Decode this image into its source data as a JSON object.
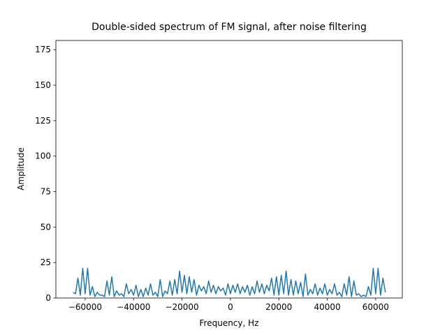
{
  "chart_data": {
    "type": "line",
    "title": "Double-sided spectrum of FM signal, after noise filtering",
    "xlabel": "Frequency, Hz",
    "ylabel": "Amplitude",
    "color": "#1f77b4",
    "grid": false,
    "x": [
      -65000,
      -64000,
      -63000,
      -62000,
      -61000,
      -60000,
      -59000,
      -58000,
      -57000,
      -56000,
      -55000,
      -54000,
      -53000,
      -52000,
      -51000,
      -50000,
      -49000,
      -48000,
      -47000,
      -46000,
      -45000,
      -44000,
      -43000,
      -42000,
      -41000,
      -40000,
      -39000,
      -38000,
      -37000,
      -36000,
      -35000,
      -34000,
      -33000,
      -32000,
      -31000,
      -30000,
      -29000,
      -28000,
      -27000,
      -26000,
      -25000,
      -24000,
      -23000,
      -22000,
      -21000,
      -20000,
      -19000,
      -18000,
      -17000,
      -16000,
      -15000,
      -14000,
      -13000,
      -12000,
      -11000,
      -10000,
      -9000,
      -8000,
      -7000,
      -6000,
      -5000,
      -4000,
      -3000,
      -2000,
      -1000,
      0,
      1000,
      2000,
      3000,
      4000,
      5000,
      6000,
      7000,
      8000,
      9000,
      10000,
      11000,
      12000,
      13000,
      14000,
      15000,
      16000,
      17000,
      18000,
      19000,
      20000,
      21000,
      22000,
      23000,
      24000,
      25000,
      26000,
      27000,
      28000,
      29000,
      30000,
      31000,
      32000,
      33000,
      34000,
      35000,
      36000,
      37000,
      38000,
      39000,
      40000,
      41000,
      42000,
      43000,
      44000,
      45000,
      46000,
      47000,
      48000,
      49000,
      50000,
      51000,
      52000,
      53000,
      54000,
      55000,
      56000,
      57000,
      58000,
      59000,
      60000,
      61000,
      62000,
      63000,
      64000
    ],
    "values": [
      4,
      3,
      14,
      2,
      21,
      3,
      21,
      2,
      8,
      1,
      4,
      2,
      2,
      1,
      12,
      2,
      15,
      1,
      5,
      2,
      3,
      1,
      10,
      3,
      6,
      2,
      9,
      1,
      6,
      1,
      7,
      2,
      10,
      2,
      4,
      1,
      13,
      1,
      5,
      3,
      12,
      2,
      13,
      3,
      19,
      4,
      16,
      3,
      15,
      4,
      13,
      2,
      9,
      5,
      8,
      3,
      12,
      4,
      9,
      3,
      8,
      5,
      7,
      2,
      10,
      3,
      9,
      4,
      10,
      3,
      8,
      4,
      9,
      2,
      8,
      3,
      12,
      4,
      10,
      3,
      9,
      5,
      14,
      2,
      15,
      2,
      16,
      3,
      19,
      2,
      13,
      2,
      12,
      3,
      11,
      1,
      17,
      2,
      6,
      3,
      10,
      2,
      7,
      3,
      10,
      2,
      6,
      3,
      10,
      2,
      4,
      1,
      10,
      2,
      15,
      1,
      12,
      2,
      3,
      1,
      2,
      1,
      8,
      2,
      21,
      3,
      21,
      2,
      14,
      4
    ],
    "xlim": [
      -72100,
      71000
    ],
    "ylim": [
      0,
      181.5
    ],
    "xticks": [
      {
        "value": -60000,
        "label": "−60000"
      },
      {
        "value": -40000,
        "label": "−40000"
      },
      {
        "value": -20000,
        "label": "−20000"
      },
      0,
      20000,
      40000,
      60000
    ],
    "yticks": [
      0,
      25,
      50,
      75,
      100,
      125,
      150,
      175
    ]
  }
}
